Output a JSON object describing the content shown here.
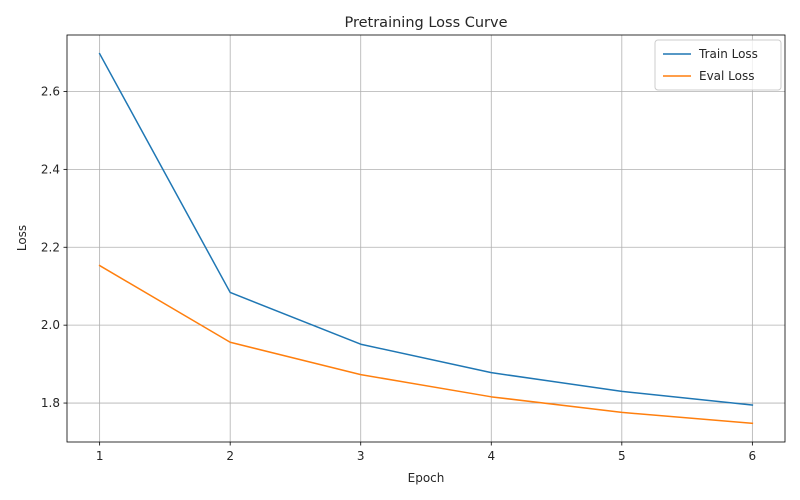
{
  "chart_data": {
    "type": "line",
    "title": "Pretraining Loss Curve",
    "xlabel": "Epoch",
    "ylabel": "Loss",
    "x": [
      1,
      2,
      3,
      4,
      5,
      6
    ],
    "xticks": [
      "1",
      "2",
      "3",
      "4",
      "5",
      "6"
    ],
    "yticks": [
      "1.8",
      "2.0",
      "2.2",
      "2.4",
      "2.6"
    ],
    "xlim": [
      0.75,
      6.25
    ],
    "ylim": [
      1.7,
      2.745
    ],
    "grid": true,
    "legend_position": "top-right",
    "series": [
      {
        "name": "Train Loss",
        "color": "#1f77b4",
        "values": [
          2.697,
          2.084,
          1.951,
          1.878,
          1.83,
          1.795
        ]
      },
      {
        "name": "Eval Loss",
        "color": "#ff7f0e",
        "values": [
          2.153,
          1.956,
          1.873,
          1.816,
          1.776,
          1.748
        ]
      }
    ]
  }
}
